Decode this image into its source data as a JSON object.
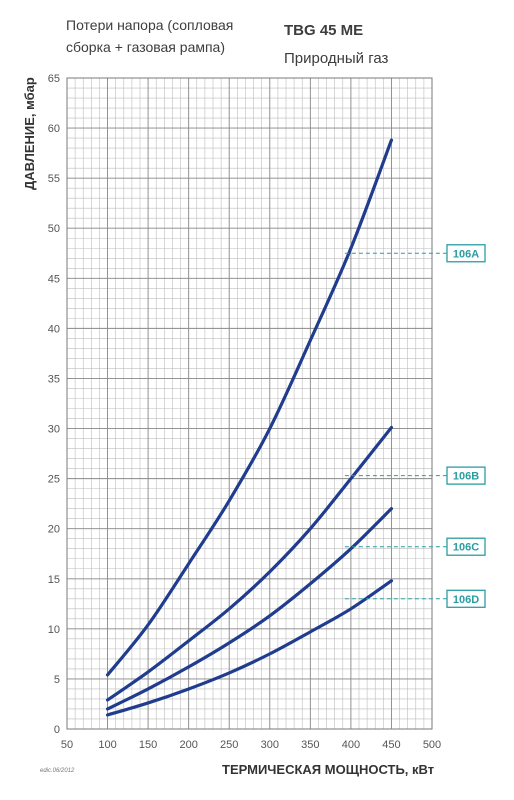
{
  "header": {
    "subtitle_line1": "Потери напора (сопловая",
    "subtitle_line2": "сборка + газовая рампа)",
    "model": "TBG 45 ME",
    "gas": "Природный газ"
  },
  "footer": {
    "edition": "edic.06/2012"
  },
  "chart_data": {
    "type": "line",
    "xlabel": "ТЕРМИЧЕСКАЯ МОЩНОСТЬ, кВт",
    "ylabel": "ДАВЛЕНИЕ, мбар",
    "xlim": [
      50,
      500
    ],
    "ylim": [
      0,
      65
    ],
    "x_ticks": [
      50,
      100,
      150,
      200,
      250,
      300,
      350,
      400,
      450,
      500
    ],
    "y_ticks": [
      0,
      5,
      10,
      15,
      20,
      25,
      30,
      35,
      40,
      45,
      50,
      55,
      60,
      65
    ],
    "grid": true,
    "series_color": "#1f3c8f",
    "tag_color": "#2a9da3",
    "series": [
      {
        "name": "106A",
        "x": [
          100,
          150,
          200,
          250,
          300,
          350,
          400,
          450
        ],
        "values": [
          5.4,
          10.4,
          16.5,
          22.8,
          30.0,
          38.8,
          48.0,
          58.8
        ],
        "tag_at": [
          400,
          47.5
        ],
        "tag_y": 47.5
      },
      {
        "name": "106B",
        "x": [
          100,
          150,
          200,
          250,
          300,
          350,
          400,
          450
        ],
        "values": [
          2.9,
          5.7,
          8.8,
          12.0,
          15.7,
          20.0,
          25.0,
          30.1
        ],
        "tag_at": [
          400,
          25.3
        ],
        "tag_y": 25.3
      },
      {
        "name": "106C",
        "x": [
          100,
          150,
          200,
          250,
          300,
          350,
          400,
          450
        ],
        "values": [
          2.0,
          4.0,
          6.2,
          8.6,
          11.3,
          14.5,
          18.0,
          22.0
        ],
        "tag_at": [
          400,
          18.2
        ],
        "tag_y": 18.2
      },
      {
        "name": "106D",
        "x": [
          100,
          150,
          200,
          250,
          300,
          350,
          400,
          450
        ],
        "values": [
          1.4,
          2.6,
          4.0,
          5.6,
          7.5,
          9.7,
          12.0,
          14.8
        ],
        "tag_at": [
          400,
          13.0
        ],
        "tag_y": 13.0
      }
    ]
  }
}
